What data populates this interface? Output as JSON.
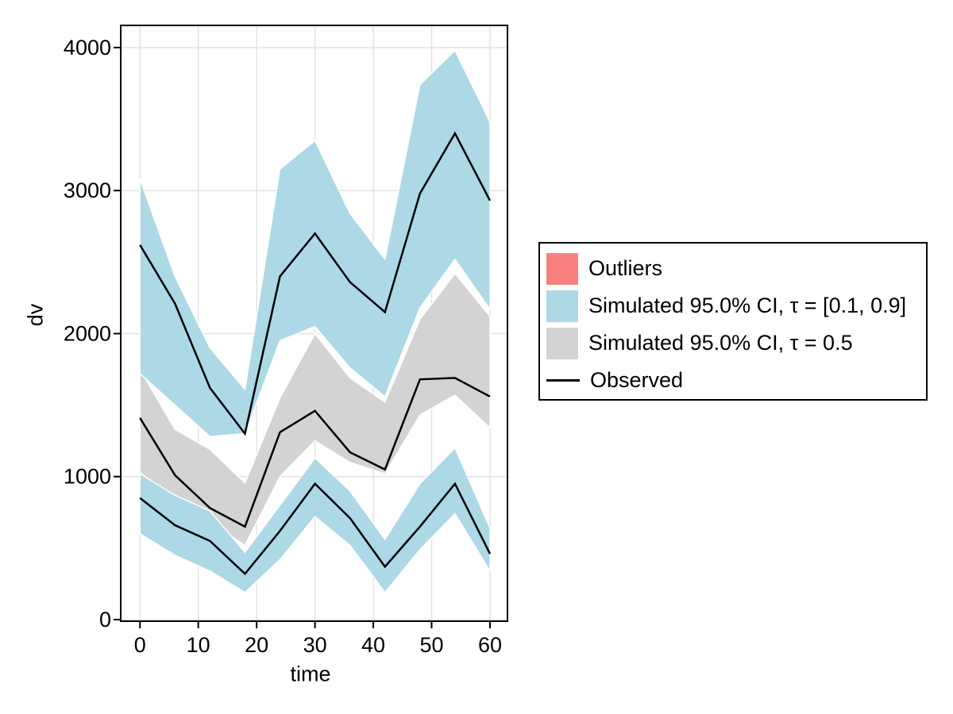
{
  "chart_data": {
    "type": "area",
    "title": "",
    "xlabel": "time",
    "ylabel": "dv",
    "xlim": [
      -3.3,
      63.0
    ],
    "ylim": [
      -11,
      4155
    ],
    "xticks": [
      0,
      10,
      20,
      30,
      40,
      50,
      60
    ],
    "yticks": [
      0,
      1000,
      2000,
      3000,
      4000
    ],
    "grid": true,
    "legend_position": "right-outside",
    "background": "#ffffff",
    "grid_color": "#e3e3e3",
    "spine_color": "#000000",
    "x": [
      0,
      6,
      12,
      18,
      24,
      30,
      36,
      42,
      48,
      54,
      60
    ],
    "bands": [
      {
        "name": "simulated-ci-median",
        "label": "Simulated 95.0% CI, τ = 0.5",
        "color": "#D3D3D3",
        "upper": [
          1750,
          1330,
          1190,
          955,
          1550,
          2000,
          1690,
          1520,
          2100,
          2420,
          2120
        ],
        "lower": [
          1030,
          820,
          680,
          520,
          1000,
          1250,
          1100,
          1020,
          1430,
          1570,
          1340
        ]
      },
      {
        "name": "simulated-ci-upper-quantile",
        "label": "Simulated 95.0% CI, τ = [0.1, 0.9] (upper band)",
        "color": "#ADD8E6",
        "upper": [
          3080,
          2400,
          1900,
          1610,
          3150,
          3350,
          2840,
          2520,
          3740,
          3980,
          3480
        ],
        "lower": [
          1720,
          1500,
          1280,
          1300,
          1950,
          2050,
          1760,
          1560,
          2180,
          2520,
          2170
        ]
      },
      {
        "name": "simulated-ci-lower-quantile",
        "label": "Simulated 95.0% CI, τ = [0.1, 0.9] (lower band)",
        "color": "#ADD8E6",
        "upper": [
          1020,
          870,
          760,
          470,
          800,
          1130,
          900,
          560,
          950,
          1200,
          640
        ],
        "lower": [
          600,
          450,
          340,
          190,
          420,
          720,
          520,
          190,
          490,
          740,
          340
        ]
      }
    ],
    "lines": [
      {
        "name": "observed-upper-quantile",
        "label": "Observed (upper quantile)",
        "color": "#000000",
        "values": [
          2620,
          2210,
          1620,
          1300,
          2400,
          2700,
          2360,
          2150,
          2980,
          3400,
          2930
        ]
      },
      {
        "name": "observed-median",
        "label": "Observed (median)",
        "color": "#000000",
        "values": [
          1410,
          1010,
          780,
          650,
          1310,
          1460,
          1170,
          1050,
          1680,
          1690,
          1560
        ]
      },
      {
        "name": "observed-lower-quantile",
        "label": "Observed (lower quantile)",
        "color": "#000000",
        "values": [
          850,
          660,
          550,
          320,
          620,
          950,
          710,
          370,
          650,
          950,
          460
        ]
      }
    ],
    "legend": [
      {
        "label": "Outliers",
        "swatch": "rect",
        "color": "#FA8080"
      },
      {
        "label": "Simulated 95.0% CI, τ = [0.1, 0.9]",
        "swatch": "rect",
        "color": "#ADD8E6"
      },
      {
        "label": "Simulated 95.0% CI, τ = 0.5",
        "swatch": "rect",
        "color": "#D3D3D3"
      },
      {
        "label": "Observed",
        "swatch": "line",
        "color": "#000000"
      }
    ]
  }
}
